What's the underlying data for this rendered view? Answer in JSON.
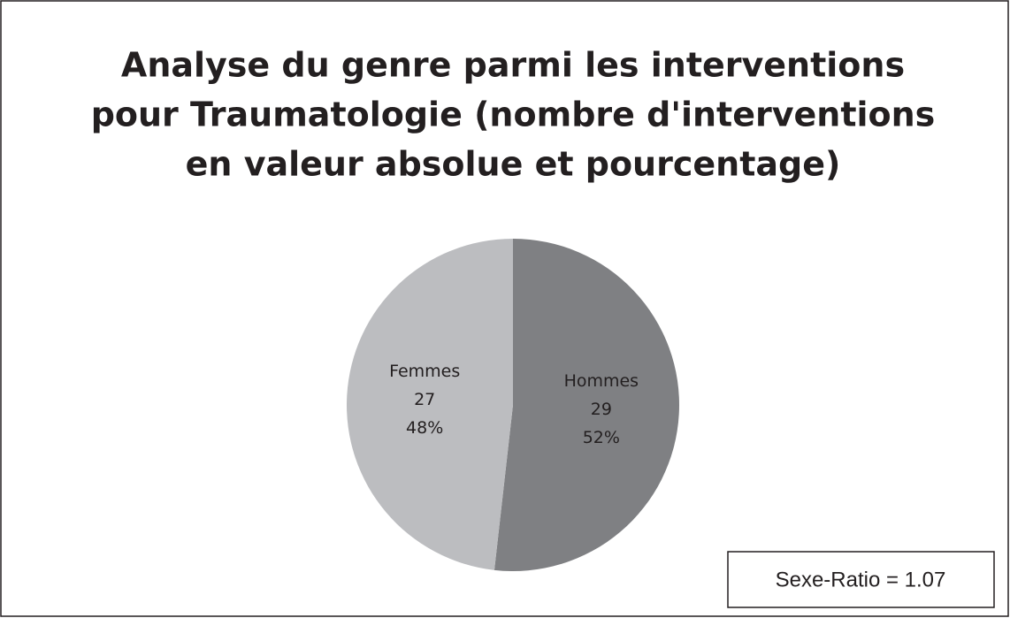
{
  "chart_data": {
    "type": "pie",
    "title": [
      "Analyse du genre parmi les interventions",
      "pour Traumatologie (nombre d'interventions",
      "en valeur absolue et pourcentage)"
    ],
    "categories": [
      "Hommes",
      "Femmes"
    ],
    "values": [
      29,
      27
    ],
    "percent_labels": [
      "52%",
      "48%"
    ],
    "colors": [
      "#7f8083",
      "#bcbdc0"
    ],
    "annotation": "Sexe-Ratio = 1.07"
  }
}
